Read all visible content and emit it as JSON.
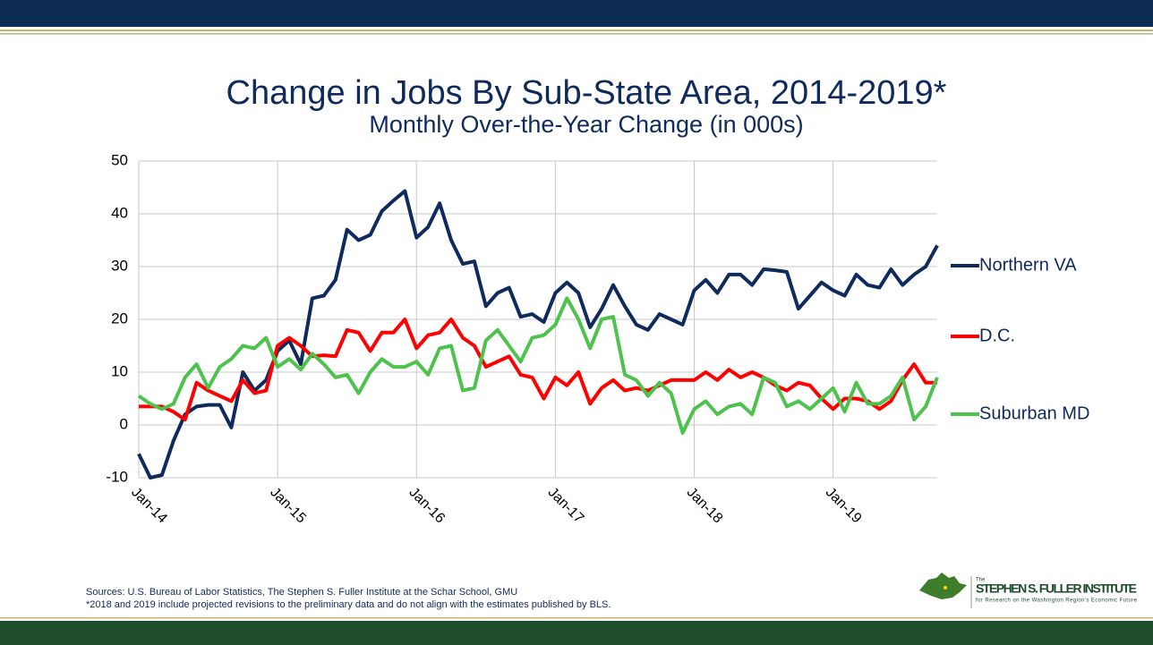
{
  "chart_data": {
    "type": "line",
    "title": "Change in Jobs By Sub-State Area, 2014-2019*",
    "subtitle": "Monthly Over-the-Year Change (in 000s)",
    "categories": [
      "Jan-14",
      null,
      null,
      null,
      null,
      null,
      null,
      null,
      null,
      null,
      null,
      null,
      "Jan-15",
      null,
      null,
      null,
      null,
      null,
      null,
      null,
      null,
      null,
      null,
      null,
      "Jan-16",
      null,
      null,
      null,
      null,
      null,
      null,
      null,
      null,
      null,
      null,
      null,
      "Jan-17",
      null,
      null,
      null,
      null,
      null,
      null,
      null,
      null,
      null,
      null,
      null,
      "Jan-18",
      null,
      null,
      null,
      null,
      null,
      null,
      null,
      null,
      null,
      null,
      null,
      "Jan-19",
      null,
      null,
      null,
      null,
      null,
      null,
      null,
      null,
      null
    ],
    "series": [
      {
        "name": "Northern VA",
        "color": "#0f2a5c",
        "values": [
          -5.5,
          -10,
          -9.5,
          -3,
          2,
          3.5,
          3.8,
          3.8,
          -0.5,
          10,
          6.5,
          8.5,
          14,
          16,
          11.5,
          24,
          24.5,
          27.5,
          37,
          35,
          36,
          40.5,
          42.5,
          44.3,
          35.5,
          37.5,
          42,
          35,
          30.5,
          31,
          22.5,
          25,
          26,
          20.5,
          21,
          19.5,
          25,
          27,
          25,
          18.5,
          22,
          26.5,
          22.5,
          19,
          18,
          21,
          20,
          19,
          25.5,
          27.5,
          25,
          28.5,
          28.5,
          26.5,
          29.5,
          29.3,
          29,
          22,
          24.5,
          27,
          25.5,
          24.5,
          28.5,
          26.5,
          26,
          29.5,
          26.5,
          28.5,
          30,
          34
        ]
      },
      {
        "name": "D.C.",
        "color": "#ff0000",
        "values": [
          3.5,
          3.5,
          3.5,
          2.5,
          1,
          8,
          6.5,
          5.5,
          4.5,
          8.5,
          6,
          6.5,
          15,
          16.5,
          15,
          13,
          13.2,
          13,
          18,
          17.5,
          14,
          17.5,
          17.5,
          20,
          14.5,
          17,
          17.5,
          20,
          16.5,
          15,
          11,
          12,
          13,
          9.5,
          9,
          5,
          9,
          7.5,
          10,
          4,
          7,
          8.5,
          6.5,
          7,
          6.5,
          7.5,
          8.5,
          8.5,
          8.5,
          10,
          8.5,
          10.5,
          9,
          10,
          9,
          7.5,
          6.5,
          8,
          7.5,
          5,
          3,
          5,
          5,
          4.5,
          3,
          4.5,
          8.5,
          11.5,
          8,
          8
        ]
      },
      {
        "name": "Suburban MD",
        "color": "#4dc24d",
        "values": [
          5.5,
          4,
          3,
          4,
          9,
          11.5,
          7,
          11,
          12.5,
          15,
          14.5,
          16.5,
          11,
          12.5,
          10.5,
          13.5,
          11.5,
          9,
          9.5,
          6,
          10,
          12.5,
          11,
          11,
          12,
          9.5,
          14.5,
          15,
          6.5,
          7,
          16,
          18,
          15,
          12,
          16.5,
          17,
          19,
          24,
          20,
          14.5,
          20,
          20.5,
          9.5,
          8.5,
          5.5,
          8,
          6,
          -1.5,
          3,
          4.5,
          2,
          3.5,
          4,
          2,
          9,
          8,
          3.5,
          4.5,
          3,
          5,
          7,
          2.5,
          8,
          4,
          4,
          5.5,
          9,
          1,
          3.5,
          9
        ]
      }
    ],
    "ylim": [
      -10,
      50
    ],
    "yticks": [
      -10,
      0,
      10,
      20,
      30,
      40,
      50
    ],
    "grid": true,
    "legend": "right",
    "sources": "Sources: U.S. Bureau of Labor Statistics, The Stephen S. Fuller Institute at the Schar School, GMU",
    "note": "*2018 and 2019 include projected revisions to the preliminary data and do not align with the estimates published by BLS."
  },
  "logo": {
    "prefix": "The",
    "name": "STEPHEN S. FULLER INSTITUTE",
    "tagline": "for Research on the Washington Region's Economic Future"
  }
}
